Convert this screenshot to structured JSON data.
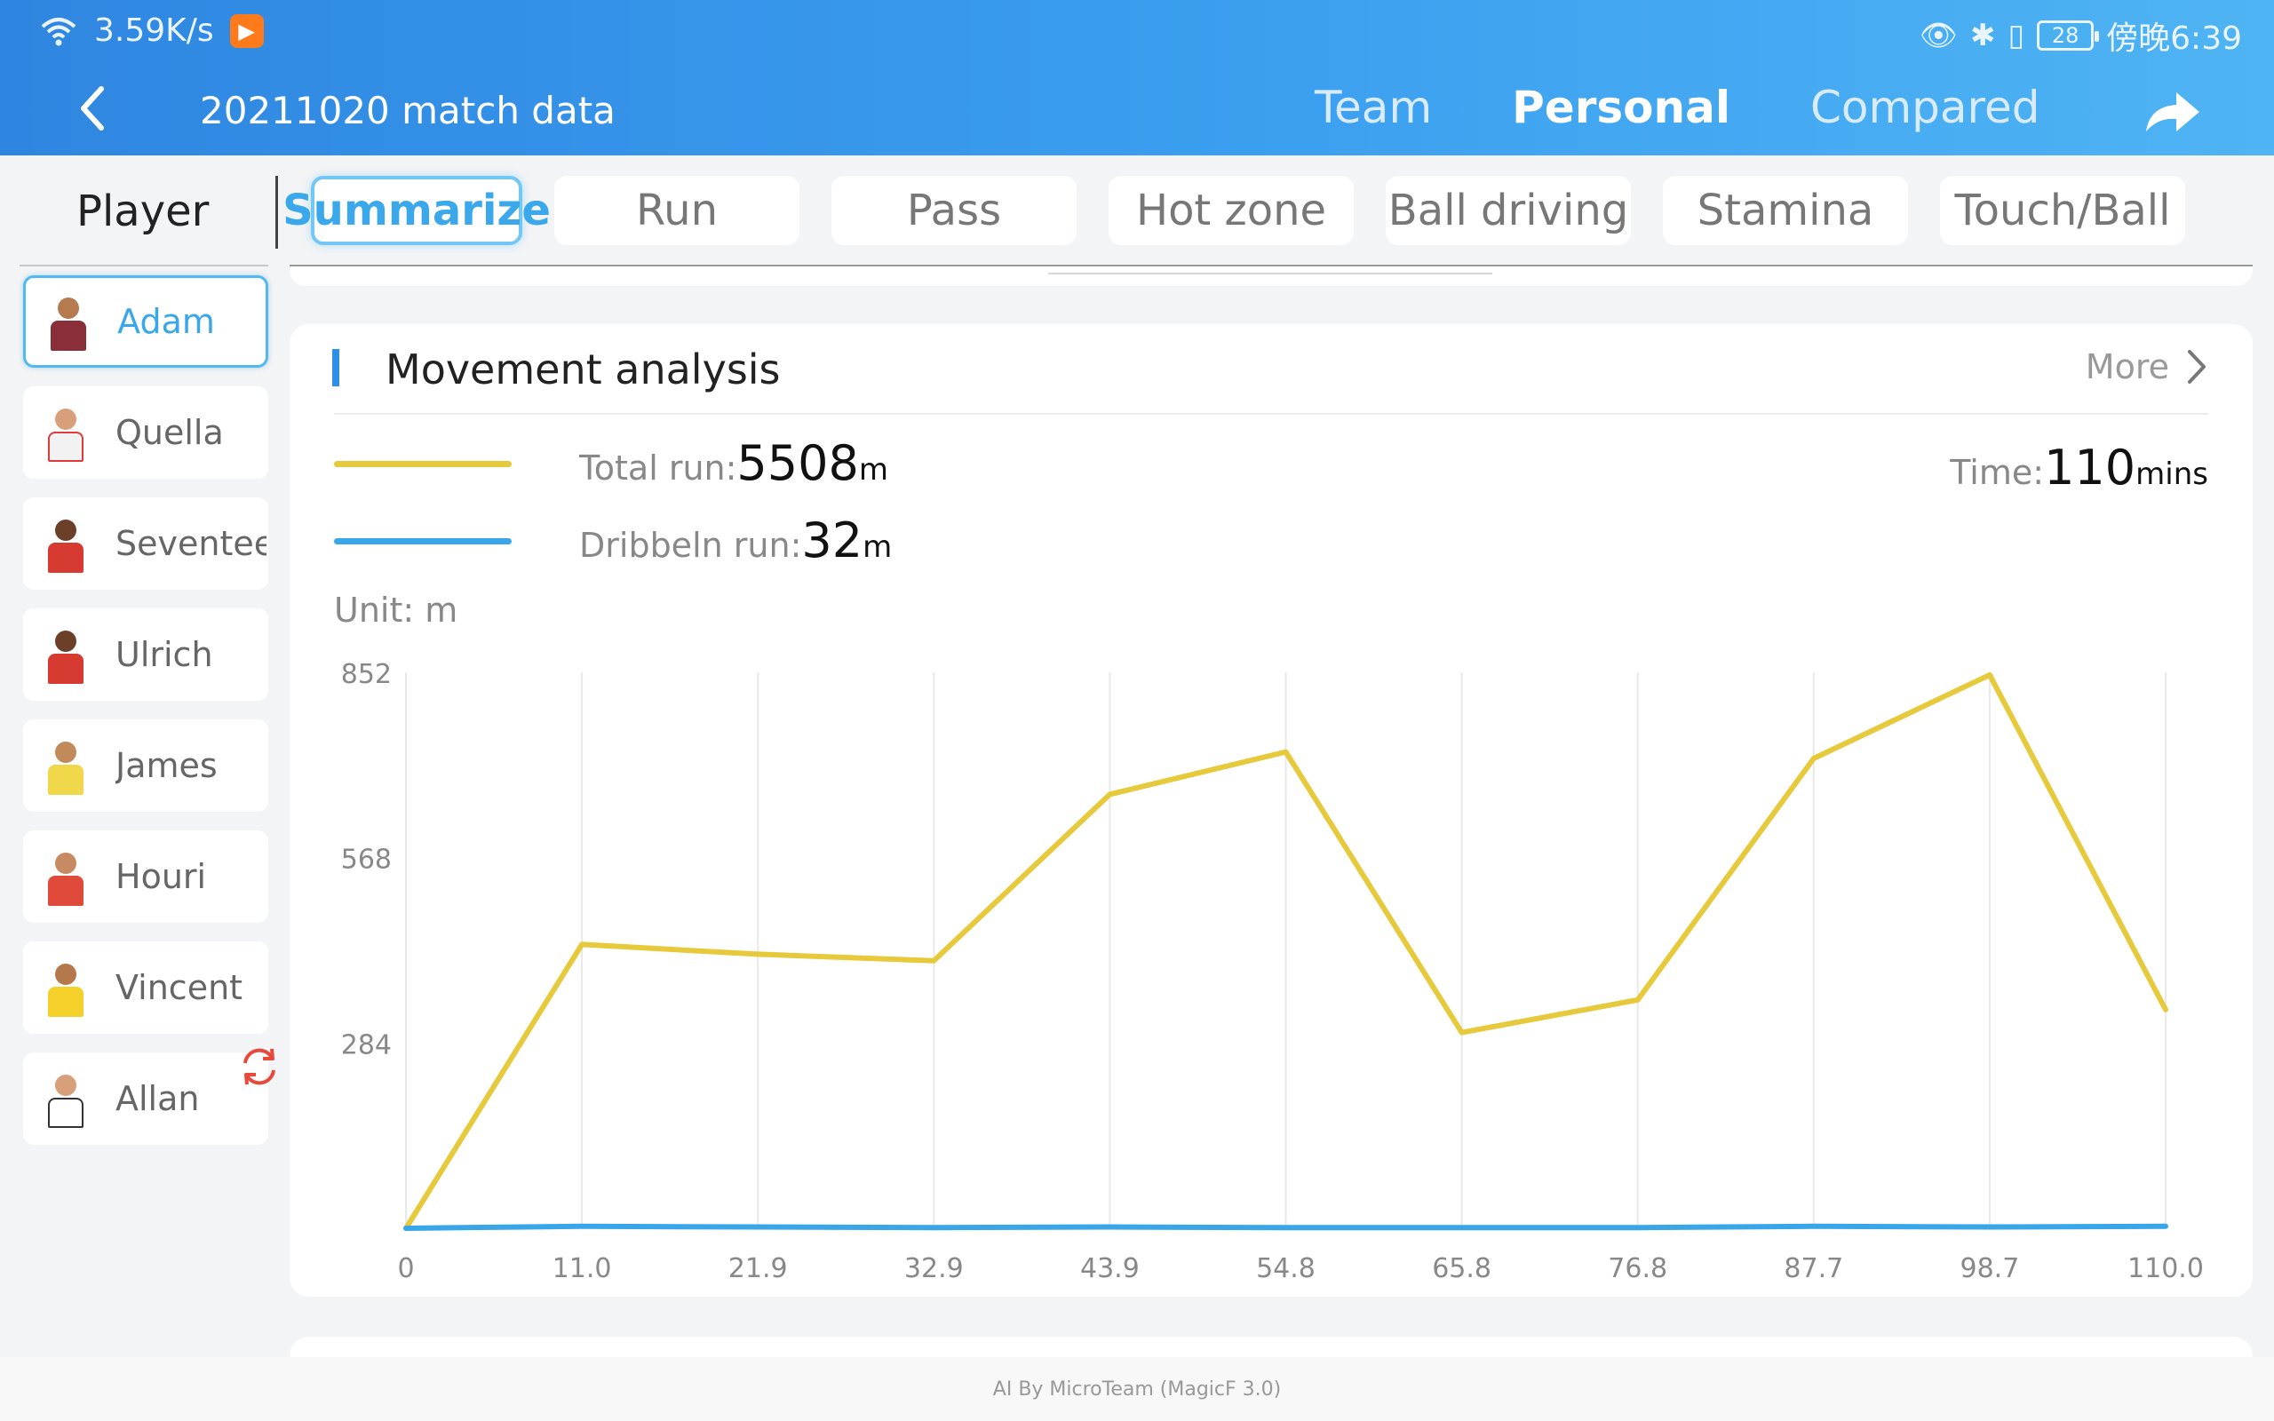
{
  "status_bar": {
    "net_speed": "3.59K/s",
    "battery": "28",
    "clock": "傍晚6:39"
  },
  "header": {
    "title": "20211020 match data",
    "tabs": [
      {
        "label": "Team",
        "active": false
      },
      {
        "label": "Personal",
        "active": true
      },
      {
        "label": "Compared",
        "active": false
      }
    ]
  },
  "sidebar": {
    "title": "Player",
    "players": [
      {
        "name": "Adam",
        "active": true,
        "shirt": "#8a2f3a",
        "accent": "#c7a53a"
      },
      {
        "name": "Quella",
        "active": false,
        "shirt": "#ffffff",
        "accent": "#e03a3a"
      },
      {
        "name": "Seventee",
        "active": false,
        "shirt": "#d63a30",
        "accent": "#ffffff"
      },
      {
        "name": "Ulrich",
        "active": false,
        "shirt": "#d63a30",
        "accent": "#2a4fa0"
      },
      {
        "name": "James",
        "active": false,
        "shirt": "#f0d84a",
        "accent": "#2a8a4a"
      },
      {
        "name": "Houri",
        "active": false,
        "shirt": "#e04a3a",
        "accent": "#2a7a3a"
      },
      {
        "name": "Vincent",
        "active": false,
        "shirt": "#f4d02a",
        "accent": "#2a4a9a"
      },
      {
        "name": "Allan",
        "active": false,
        "shirt": "#ffffff",
        "accent": "#c03a5a"
      }
    ]
  },
  "sub_tabs": [
    {
      "label": "Summarize",
      "active": true
    },
    {
      "label": "Run",
      "active": false
    },
    {
      "label": "Pass",
      "active": false
    },
    {
      "label": "Hot zone",
      "active": false
    },
    {
      "label": "Ball driving",
      "active": false
    },
    {
      "label": "Stamina",
      "active": false
    },
    {
      "label": "Touch/Ball",
      "active": false
    }
  ],
  "card": {
    "title": "Movement analysis",
    "more_label": "More",
    "total_run_label": "Total run:",
    "total_run_value": "5508",
    "total_run_unit": "m",
    "dribble_label": "Dribbeln run:",
    "dribble_value": "32",
    "dribble_unit": "m",
    "time_label": "Time:",
    "time_value": "110",
    "time_unit": "mins",
    "unit_label": "Unit:  m"
  },
  "colors": {
    "total_run": "#e7c93c",
    "dribble": "#3aa6ea",
    "accent": "#2e8fe8"
  },
  "chart_data": {
    "type": "line",
    "x": [
      "0",
      "11.0",
      "21.9",
      "32.9",
      "43.9",
      "54.8",
      "65.8",
      "76.8",
      "87.7",
      "98.7",
      "110.0"
    ],
    "series": [
      {
        "name": "Total run",
        "values": [
          0,
          435,
          420,
          410,
          665,
          730,
          300,
          350,
          720,
          848,
          335
        ]
      },
      {
        "name": "Dribbeln run",
        "values": [
          0,
          3,
          2,
          1,
          2,
          1,
          1,
          1,
          3,
          2,
          3
        ]
      }
    ],
    "y_ticks": [
      "284",
      "568",
      "852"
    ],
    "ylim": [
      0,
      852
    ],
    "ylabel": "Unit:  m",
    "grid": "vertical"
  },
  "footer": {
    "text": "AI By MicroTeam (MagicF 3.0)"
  }
}
